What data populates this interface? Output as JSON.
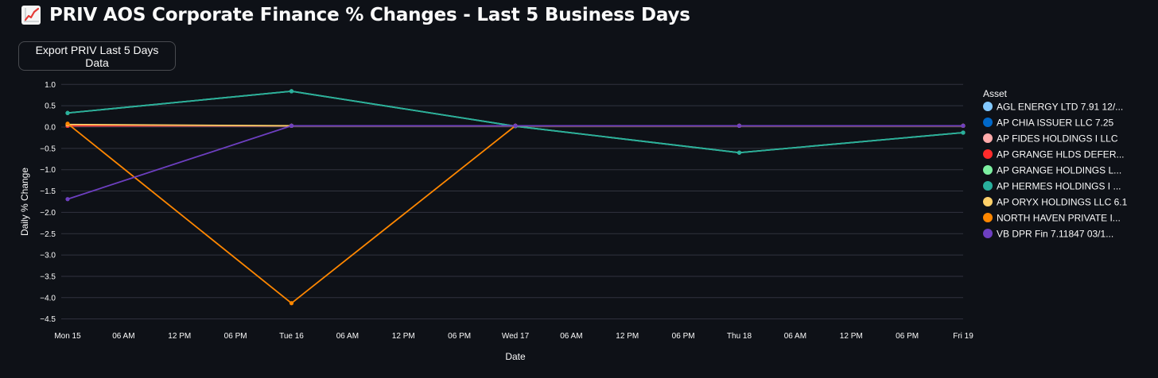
{
  "page": {
    "title": "PRIV AOS Corporate Finance % Changes - Last 5 Business Days",
    "title_icon": "chart-increasing-icon",
    "export_button_label": "Export PRIV Last 5 Days Data"
  },
  "chart_data": {
    "type": "line",
    "title": "",
    "xlabel": "Date",
    "ylabel": "Daily % Change",
    "ylim": [
      -4.6,
      1.1
    ],
    "grid": true,
    "yticks": [
      1.0,
      0.5,
      0.0,
      -0.5,
      -1.0,
      -1.5,
      -2.0,
      -2.5,
      -3.0,
      -3.5,
      -4.0,
      -4.5
    ],
    "ytick_labels": [
      "1.0",
      "0.5",
      "0.0",
      "−0.5",
      "−1.0",
      "−1.5",
      "−2.0",
      "−2.5",
      "−3.0",
      "−3.5",
      "−4.0",
      "−4.5"
    ],
    "xticks": [
      "Mon 15",
      "06 AM",
      "12 PM",
      "06 PM",
      "Tue 16",
      "06 AM",
      "12 PM",
      "06 PM",
      "Wed 17",
      "06 AM",
      "12 PM",
      "06 PM",
      "Thu 18",
      "06 AM",
      "12 PM",
      "06 PM",
      "Fri 19"
    ],
    "x": [
      "Mon 15",
      "Tue 16",
      "Wed 17",
      "Thu 18",
      "Fri 19"
    ],
    "legend": {
      "title": "Asset",
      "placement": "right"
    },
    "series": [
      {
        "name": "AGL ENERGY LTD 7.91 12/...",
        "color": "#83c9ff",
        "values": [
          0.03,
          0.03,
          0.03,
          0.03,
          0.03
        ]
      },
      {
        "name": "AP CHIA ISSUER LLC 7.25",
        "color": "#0068c9",
        "values": [
          0.03,
          0.03,
          0.03,
          0.03,
          0.03
        ]
      },
      {
        "name": "AP FIDES HOLDINGS I LLC",
        "color": "#ffabab",
        "values": [
          0.03,
          0.03,
          0.03,
          0.03,
          0.03
        ]
      },
      {
        "name": "AP GRANGE HLDS DEFER...",
        "color": "#ff2b2b",
        "values": [
          0.03,
          0.03,
          0.03,
          0.03,
          0.03
        ]
      },
      {
        "name": "AP GRANGE HOLDINGS L...",
        "color": "#7defa1",
        "values": [
          0.33,
          0.84,
          0.02,
          -0.6,
          -0.13
        ]
      },
      {
        "name": "AP HERMES HOLDINGS I ...",
        "color": "#29b09d",
        "values": [
          0.33,
          0.84,
          0.02,
          -0.6,
          -0.13
        ]
      },
      {
        "name": "AP ORYX HOLDINGS LLC 6.1",
        "color": "#ffd16a",
        "values": [
          0.06,
          0.03,
          0.03,
          0.03,
          0.03
        ]
      },
      {
        "name": "NORTH HAVEN PRIVATE I...",
        "color": "#ff8700",
        "values": [
          0.08,
          -4.13,
          0.03,
          0.03,
          0.03
        ]
      },
      {
        "name": "VB DPR Fin 7.11847 03/1...",
        "color": "#6d3fc0",
        "values": [
          -1.69,
          0.03,
          0.03,
          0.03,
          0.03
        ]
      }
    ]
  }
}
